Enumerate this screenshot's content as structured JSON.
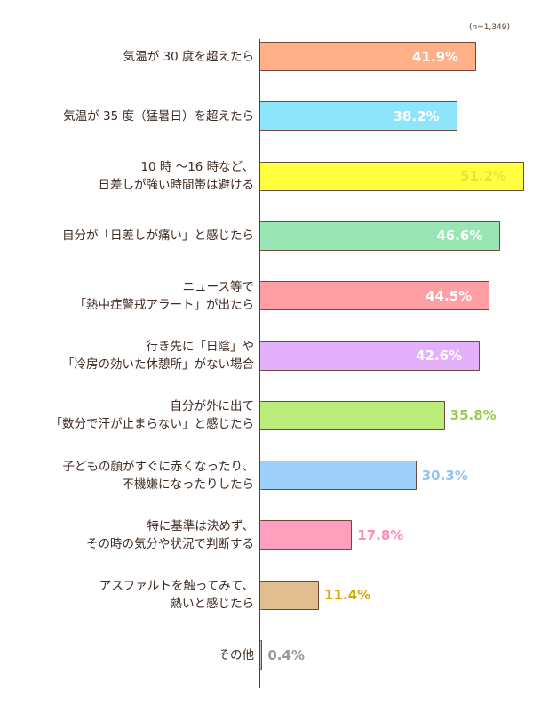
{
  "note": "(n=1,349)",
  "chart_data": {
    "type": "bar",
    "orientation": "horizontal",
    "categories": [
      "気温が 30 度を超えたら",
      "気温が 35 度（猛暑日）を超えたら",
      "10 時 〜16 時など、\n日差しが強い時間帯は避ける",
      "自分が「日差しが痛い」と感じたら",
      "ニュース等で\n「熱中症警戒アラート」が出たら",
      "行き先に「日陰」や\n「冷房の効いた休憩所」がない場合",
      "自分が外に出て\n「数分で汗が止まらない」と感じたら",
      "子どもの顔がすぐに赤くなったり、\n不機嫌になったりしたら",
      "特に基準は決めず、\nその時の気分や状況で判断する",
      "アスファルトを触ってみて、\n熱いと感じたら",
      "その他"
    ],
    "values": [
      41.9,
      38.2,
      51.2,
      46.6,
      44.5,
      42.6,
      35.8,
      30.3,
      17.8,
      11.4,
      0.4
    ],
    "value_labels": [
      "41.9%",
      "38.2%",
      "51.2%",
      "46.6%",
      "44.5%",
      "42.6%",
      "35.8%",
      "30.3%",
      "17.8%",
      "11.4%",
      "0.4%"
    ],
    "colors": [
      "#ffb087",
      "#8ee4fb",
      "#ffff40",
      "#99e6b4",
      "#ff9ea4",
      "#e3b0fb",
      "#b9ec79",
      "#9fd0fb",
      "#ff9fbe",
      "#e2bd8f",
      "#c5c5c5"
    ],
    "label_colors": [
      "#ffffff",
      "#ffffff",
      "#e4e43a",
      "#ffffff",
      "#ffffff",
      "#ffffff",
      "#9acb4f",
      "#96c2ee",
      "#ff8cb3",
      "#d6a800",
      "#999999"
    ],
    "label_inside": [
      true,
      true,
      true,
      true,
      true,
      true,
      false,
      false,
      false,
      false,
      false
    ],
    "xlim": [
      0,
      51.2
    ]
  }
}
